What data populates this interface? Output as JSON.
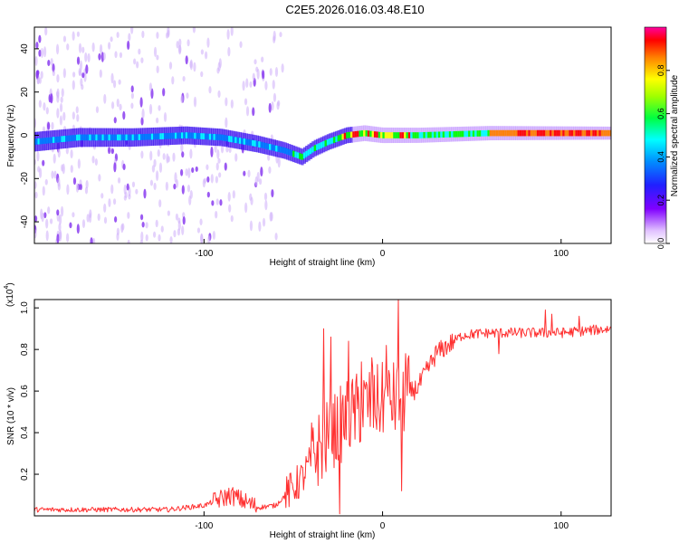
{
  "figure_title": "C2E5.2026.016.03.48.E10",
  "chart_data": [
    {
      "type": "heatmap",
      "name": "spectrogram",
      "xlabel": "Height of straight line (km)",
      "ylabel": "Frequency (Hz)",
      "xlim": [
        -195,
        128
      ],
      "ylim": [
        -50,
        50
      ],
      "xticks": [
        {
          "value": -100,
          "label": "-100"
        },
        {
          "value": 0,
          "label": "0"
        },
        {
          "value": 100,
          "label": "100"
        }
      ],
      "yticks": [
        {
          "value": -40,
          "label": "-40"
        },
        {
          "value": -20,
          "label": "-20"
        },
        {
          "value": 0,
          "label": "0"
        },
        {
          "value": 20,
          "label": "20"
        },
        {
          "value": 40,
          "label": "40"
        }
      ],
      "centerline": [
        {
          "x": -195,
          "f": -3
        },
        {
          "x": -170,
          "f": -1
        },
        {
          "x": -140,
          "f": -1
        },
        {
          "x": -110,
          "f": 0
        },
        {
          "x": -90,
          "f": -1
        },
        {
          "x": -70,
          "f": -4
        },
        {
          "x": -55,
          "f": -7
        },
        {
          "x": -45,
          "f": -10
        },
        {
          "x": -38,
          "f": -6
        },
        {
          "x": -30,
          "f": -3
        },
        {
          "x": -20,
          "f": 0
        },
        {
          "x": -10,
          "f": 1
        },
        {
          "x": 0,
          "f": 0
        },
        {
          "x": 20,
          "f": 0
        },
        {
          "x": 60,
          "f": 1
        },
        {
          "x": 100,
          "f": 1
        },
        {
          "x": 128,
          "f": 1
        }
      ],
      "colorbar": {
        "label": "Normalized spectral amplitude",
        "range": [
          0.0,
          1.0
        ],
        "ticks": [
          {
            "value": 0.0,
            "label": "0.0"
          },
          {
            "value": 0.2,
            "label": "0.2"
          },
          {
            "value": 0.4,
            "label": "0.4"
          },
          {
            "value": 0.6,
            "label": "0.6"
          },
          {
            "value": 0.8,
            "label": "0.8"
          }
        ],
        "colors": [
          "#ffffff",
          "#c080ff",
          "#4000ff",
          "#0080ff",
          "#00ffff",
          "#00ff00",
          "#ffff00",
          "#ff8000",
          "#ff0000",
          "#ff00ff"
        ]
      }
    },
    {
      "type": "line",
      "name": "snr",
      "xlabel": "Height of straight line (km)",
      "ylabel": "SNR (10 * v/v)",
      "y_multiplier_label": "(x10",
      "y_multiplier_exponent": "4",
      "y_multiplier_close": ")",
      "xlim": [
        -195,
        128
      ],
      "ylim": [
        0,
        1.04
      ],
      "color": "#ff3030",
      "xticks": [
        {
          "value": -100,
          "label": "-100"
        },
        {
          "value": 0,
          "label": "0"
        },
        {
          "value": 100,
          "label": "100"
        }
      ],
      "yticks": [
        {
          "value": 0.2,
          "label": "0.2"
        },
        {
          "value": 0.4,
          "label": "0.4"
        },
        {
          "value": 0.6,
          "label": "0.6"
        },
        {
          "value": 0.8,
          "label": "0.8"
        },
        {
          "value": 1.0,
          "label": "1.0"
        }
      ],
      "trend": [
        {
          "x": -195,
          "y": 0.03
        },
        {
          "x": -120,
          "y": 0.03
        },
        {
          "x": -100,
          "y": 0.05
        },
        {
          "x": -85,
          "y": 0.1
        },
        {
          "x": -70,
          "y": 0.04
        },
        {
          "x": -60,
          "y": 0.05
        },
        {
          "x": -45,
          "y": 0.18
        },
        {
          "x": -38,
          "y": 0.3
        },
        {
          "x": -30,
          "y": 0.38
        },
        {
          "x": -20,
          "y": 0.47
        },
        {
          "x": -10,
          "y": 0.53
        },
        {
          "x": 0,
          "y": 0.55
        },
        {
          "x": 10,
          "y": 0.56
        },
        {
          "x": 20,
          "y": 0.62
        },
        {
          "x": 30,
          "y": 0.78
        },
        {
          "x": 45,
          "y": 0.87
        },
        {
          "x": 60,
          "y": 0.88
        },
        {
          "x": 80,
          "y": 0.88
        },
        {
          "x": 100,
          "y": 0.88
        },
        {
          "x": 128,
          "y": 0.9
        }
      ],
      "spikes": [
        {
          "x": -33,
          "y": 0.9
        },
        {
          "x": -29,
          "y": 0.86
        },
        {
          "x": -24,
          "y": 0.01
        },
        {
          "x": -19,
          "y": 0.84
        },
        {
          "x": -12,
          "y": 0.74
        },
        {
          "x": -6,
          "y": 0.76
        },
        {
          "x": 2,
          "y": 0.82
        },
        {
          "x": 9,
          "y": 1.04
        },
        {
          "x": 10.5,
          "y": 0.12
        },
        {
          "x": 13,
          "y": 0.78
        },
        {
          "x": 65,
          "y": 0.78
        },
        {
          "x": 91,
          "y": 0.99
        },
        {
          "x": 95,
          "y": 0.97
        },
        {
          "x": 110,
          "y": 0.96
        }
      ]
    }
  ]
}
